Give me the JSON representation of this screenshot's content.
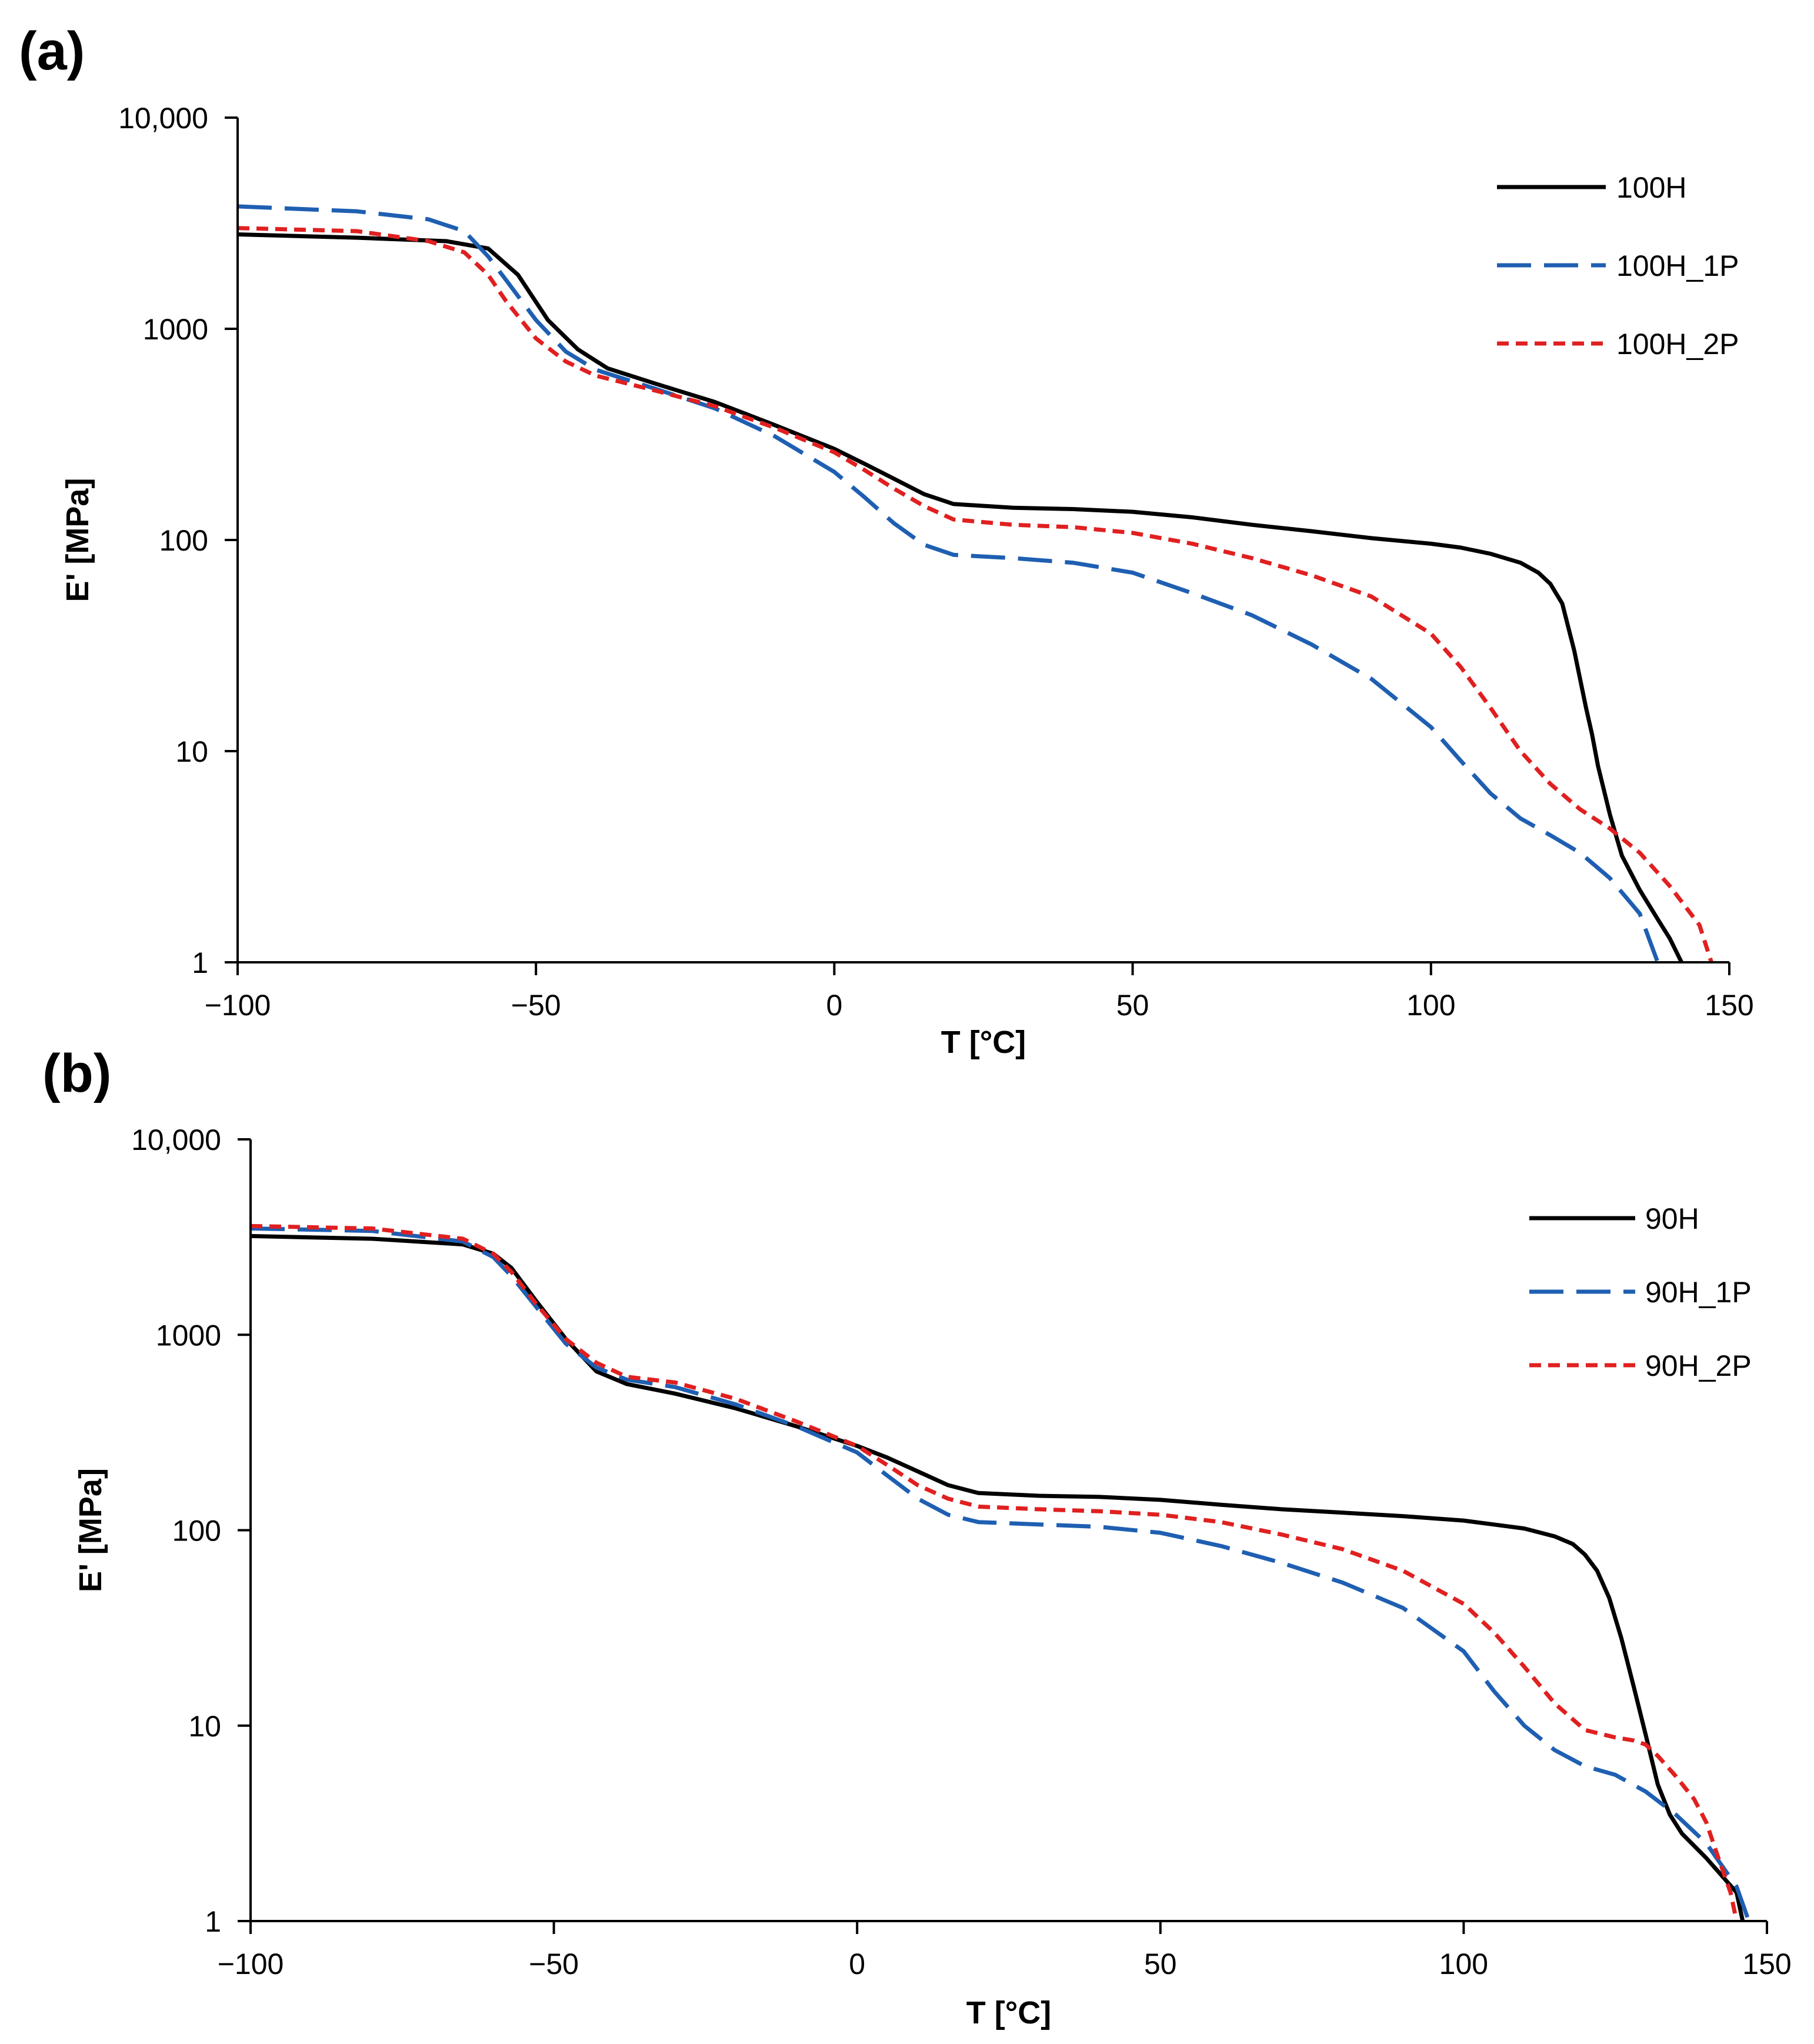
{
  "chart_data": [
    {
      "type": "line",
      "panel_label": "(a)",
      "xlabel": "T [°C]",
      "ylabel": "E' [MPa]",
      "xlim": [
        -100,
        150
      ],
      "ylim": [
        1,
        10000
      ],
      "yscale": "log",
      "xticks": [
        -100,
        -50,
        0,
        50,
        100,
        150
      ],
      "xtick_labels": [
        "−100",
        "−50",
        "0",
        "50",
        "100",
        "150"
      ],
      "yticks": [
        1,
        10,
        100,
        1000,
        10000
      ],
      "ytick_labels": [
        "1",
        "10",
        "100",
        "1000",
        "10,000"
      ],
      "grid": false,
      "legend": "top-right",
      "series": [
        {
          "name": "100H",
          "color": "#000000",
          "style": "solid",
          "x": [
            -100,
            -80,
            -65,
            -58,
            -53,
            -48,
            -43,
            -38,
            -30,
            -20,
            -10,
            0,
            5,
            10,
            15,
            20,
            30,
            40,
            50,
            60,
            70,
            80,
            90,
            100,
            105,
            110,
            115,
            118,
            120,
            122,
            124,
            126,
            127,
            128,
            130,
            132,
            135,
            138,
            140,
            142
          ],
          "y": [
            2800,
            2700,
            2600,
            2400,
            1800,
            1100,
            800,
            650,
            550,
            450,
            350,
            270,
            230,
            195,
            165,
            148,
            142,
            140,
            136,
            128,
            118,
            110,
            102,
            96,
            92,
            86,
            78,
            70,
            62,
            50,
            30,
            16,
            12,
            8.5,
            5,
            3.2,
            2.2,
            1.6,
            1.3,
            1.0
          ]
        },
        {
          "name": "100H_1P",
          "color": "#1f5fb2",
          "style": "long-dash",
          "x": [
            -100,
            -80,
            -68,
            -62,
            -58,
            -55,
            -50,
            -45,
            -40,
            -30,
            -20,
            -10,
            0,
            5,
            10,
            15,
            20,
            30,
            40,
            50,
            60,
            70,
            80,
            90,
            100,
            105,
            110,
            115,
            120,
            125,
            130,
            135,
            138
          ],
          "y": [
            3800,
            3600,
            3300,
            2900,
            2200,
            1700,
            1100,
            780,
            640,
            520,
            420,
            310,
            210,
            160,
            120,
            95,
            85,
            82,
            78,
            70,
            56,
            44,
            32,
            22,
            13,
            9,
            6.3,
            4.8,
            4.0,
            3.3,
            2.5,
            1.7,
            1.0
          ]
        },
        {
          "name": "100H_2P",
          "color": "#e02020",
          "style": "short-dash",
          "x": [
            -100,
            -80,
            -68,
            -62,
            -58,
            -55,
            -50,
            -45,
            -40,
            -30,
            -20,
            -10,
            0,
            5,
            10,
            15,
            20,
            30,
            40,
            50,
            60,
            70,
            80,
            90,
            100,
            105,
            110,
            115,
            120,
            125,
            130,
            135,
            140,
            145,
            147
          ],
          "y": [
            3000,
            2900,
            2600,
            2300,
            1800,
            1350,
            900,
            700,
            600,
            510,
            430,
            340,
            260,
            215,
            175,
            145,
            125,
            118,
            115,
            108,
            96,
            82,
            68,
            54,
            36,
            25,
            16,
            10,
            7,
            5.3,
            4.3,
            3.3,
            2.3,
            1.5,
            1.0
          ]
        }
      ]
    },
    {
      "type": "line",
      "panel_label": "(b)",
      "xlabel": "T [°C]",
      "ylabel": "E' [MPa]",
      "xlim": [
        -100,
        150
      ],
      "ylim": [
        1,
        10000
      ],
      "yscale": "log",
      "xticks": [
        -100,
        -50,
        0,
        50,
        100,
        150
      ],
      "xtick_labels": [
        "−100",
        "−50",
        "0",
        "50",
        "100",
        "150"
      ],
      "yticks": [
        1,
        10,
        100,
        1000,
        10000
      ],
      "ytick_labels": [
        "1",
        "10",
        "100",
        "1000",
        "10,000"
      ],
      "grid": false,
      "legend": "top-right",
      "series": [
        {
          "name": "90H",
          "color": "#000000",
          "style": "solid",
          "x": [
            -100,
            -80,
            -65,
            -60,
            -57,
            -53,
            -48,
            -43,
            -38,
            -30,
            -20,
            -10,
            0,
            5,
            10,
            15,
            20,
            30,
            40,
            50,
            60,
            70,
            80,
            90,
            100,
            110,
            115,
            118,
            120,
            122,
            124,
            126,
            128,
            130,
            132,
            134,
            136,
            140,
            145,
            146
          ],
          "y": [
            3200,
            3100,
            2900,
            2600,
            2200,
            1500,
            950,
            650,
            560,
            500,
            420,
            340,
            270,
            235,
            200,
            170,
            155,
            150,
            148,
            143,
            135,
            128,
            123,
            118,
            112,
            102,
            93,
            85,
            75,
            62,
            45,
            28,
            16,
            9,
            5,
            3.5,
            2.8,
            2.1,
            1.4,
            1.0
          ]
        },
        {
          "name": "90H_1P",
          "color": "#1f5fb2",
          "style": "long-dash",
          "x": [
            -100,
            -80,
            -65,
            -60,
            -57,
            -53,
            -48,
            -43,
            -38,
            -30,
            -20,
            -10,
            0,
            5,
            10,
            15,
            20,
            30,
            40,
            50,
            60,
            70,
            80,
            90,
            100,
            105,
            110,
            115,
            120,
            125,
            130,
            135,
            140,
            145,
            147
          ],
          "y": [
            3500,
            3400,
            3000,
            2500,
            2000,
            1400,
            900,
            680,
            590,
            540,
            440,
            340,
            250,
            190,
            145,
            120,
            110,
            107,
            104,
            97,
            83,
            68,
            54,
            40,
            24,
            15,
            10,
            7.5,
            6.2,
            5.6,
            4.6,
            3.5,
            2.5,
            1.5,
            1.0
          ]
        },
        {
          "name": "90H_2P",
          "color": "#e02020",
          "style": "short-dash",
          "x": [
            -100,
            -80,
            -65,
            -60,
            -57,
            -53,
            -48,
            -43,
            -38,
            -30,
            -20,
            -10,
            0,
            5,
            10,
            15,
            20,
            30,
            40,
            50,
            60,
            70,
            80,
            90,
            100,
            105,
            110,
            115,
            120,
            125,
            128,
            130,
            132,
            135,
            138,
            140,
            142,
            144,
            145
          ],
          "y": [
            3600,
            3500,
            3100,
            2600,
            2100,
            1450,
            950,
            720,
            610,
            570,
            470,
            360,
            270,
            215,
            170,
            145,
            132,
            128,
            125,
            120,
            110,
            95,
            80,
            62,
            42,
            30,
            20,
            13,
            9.5,
            8.7,
            8.4,
            8.0,
            7.0,
            5.5,
            4.2,
            3.2,
            2.1,
            1.4,
            1.0
          ]
        }
      ]
    }
  ]
}
